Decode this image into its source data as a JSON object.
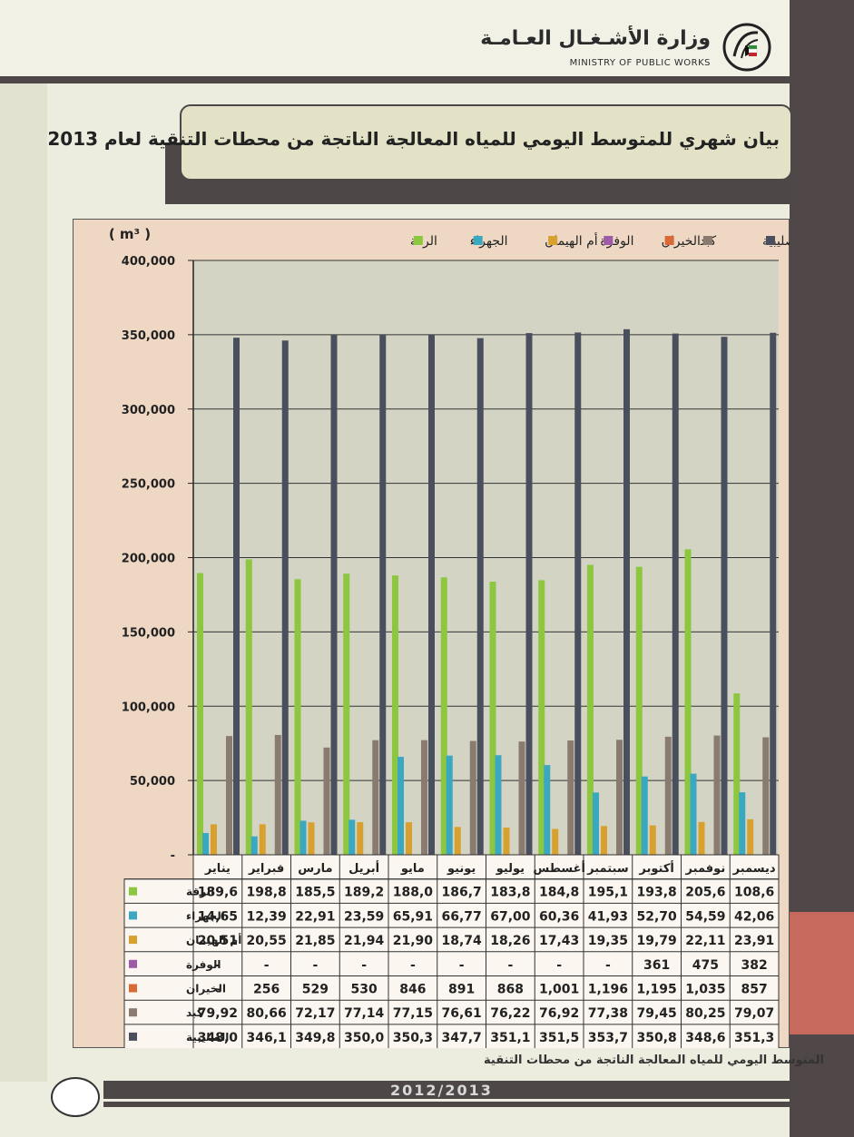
{
  "header": {
    "ministry_ar": "وزارة الأشـغـال العـامـة",
    "ministry_en": "MINISTRY OF PUBLIC WORKS"
  },
  "page_title": "بيان شهري للمتوسط اليومي للمياه المعالجة الناتجة من محطات التنقية لعام 2013",
  "caption": "المتوسط اليومي للمياه المعالجة الناتجة من محطات التنقية",
  "footer_year": "2012/2013",
  "colors": {
    "الرقة": "#8dc63f",
    "الجهراء": "#3ba8c2",
    "أم الهيمان": "#d8a02e",
    "الوفرة": "#9e5ca8",
    "الخيران": "#d86a36",
    "كبد": "#8a7b70",
    "الصليبية": "#4a4f5e"
  },
  "chart_data": {
    "type": "bar",
    "unit_label": "( m³ )",
    "ylim": [
      0,
      400000
    ],
    "yticks": [
      "-",
      "50,000",
      "100,000",
      "150,000",
      "200,000",
      "250,000",
      "300,000",
      "350,000",
      "400,000"
    ],
    "legend_position": "top",
    "grid": true,
    "categories": [
      "يناير",
      "فبراير",
      "مارس",
      "أبريل",
      "مايو",
      "يونيو",
      "يوليو",
      "أغسطس",
      "سبتمبر",
      "أكتوبر",
      "نوفمبر",
      "ديسمبر"
    ],
    "series": [
      {
        "name": "الرقة",
        "values": [
          189600,
          198800,
          185500,
          189200,
          188000,
          186700,
          183800,
          184800,
          195100,
          193800,
          205600,
          108600
        ],
        "labels": [
          "189,6",
          "198,8",
          "185,5",
          "189,2",
          "188,0",
          "186,7",
          "183,8",
          "184,8",
          "195,1",
          "193,8",
          "205,6",
          "108,6"
        ]
      },
      {
        "name": "الجهراء",
        "values": [
          14650,
          12390,
          22910,
          23590,
          65910,
          66770,
          67000,
          60360,
          41930,
          52700,
          54590,
          42060
        ],
        "labels": [
          "14,65",
          "12,39",
          "22,91",
          "23,59",
          "65,91",
          "66,77",
          "67,00",
          "60,36",
          "41,93",
          "52,70",
          "54,59",
          "42,06"
        ]
      },
      {
        "name": "أم الهيمان",
        "values": [
          20510,
          20550,
          21850,
          21940,
          21900,
          18740,
          18260,
          17430,
          19350,
          19790,
          22110,
          23910
        ],
        "labels": [
          "20,51",
          "20,55",
          "21,85",
          "21,94",
          "21,90",
          "18,74",
          "18,26",
          "17,43",
          "19,35",
          "19,79",
          "22,11",
          "23,91"
        ]
      },
      {
        "name": "الوفرة",
        "values": [
          0,
          0,
          0,
          0,
          0,
          0,
          0,
          0,
          0,
          361,
          475,
          382
        ],
        "labels": [
          "-",
          "-",
          "-",
          "-",
          "-",
          "-",
          "-",
          "-",
          "-",
          "361",
          "475",
          "382"
        ]
      },
      {
        "name": "الخيران",
        "values": [
          0,
          256,
          529,
          530,
          846,
          891,
          868,
          1001,
          1196,
          1195,
          1035,
          857
        ],
        "labels": [
          "-",
          "256",
          "529",
          "530",
          "846",
          "891",
          "868",
          "1,001",
          "1,196",
          "1,195",
          "1,035",
          "857"
        ]
      },
      {
        "name": "كبد",
        "values": [
          79920,
          80660,
          72170,
          77140,
          77150,
          76610,
          76220,
          76920,
          77380,
          79450,
          80250,
          79070
        ],
        "labels": [
          "79,92",
          "80,66",
          "72,17",
          "77,14",
          "77,15",
          "76,61",
          "76,22",
          "76,92",
          "77,38",
          "79,45",
          "80,25",
          "79,07"
        ]
      },
      {
        "name": "الصليبية",
        "values": [
          348000,
          346100,
          349800,
          350000,
          350300,
          347700,
          351100,
          351500,
          353700,
          350800,
          348600,
          351300
        ],
        "labels": [
          "348,0",
          "346,1",
          "349,8",
          "350,0",
          "350,3",
          "347,7",
          "351,1",
          "351,5",
          "353,7",
          "350,8",
          "348,6",
          "351,3"
        ]
      }
    ],
    "legend_order": [
      "الصليبية",
      "كبد",
      "الخيران",
      "الوفرة",
      "أم الهيمان",
      "الجهراء",
      "الرقة"
    ],
    "chart_bar_series": [
      "الرقة",
      "الجهراء",
      "أم الهيمان",
      "كبد",
      "الصليبية"
    ]
  }
}
